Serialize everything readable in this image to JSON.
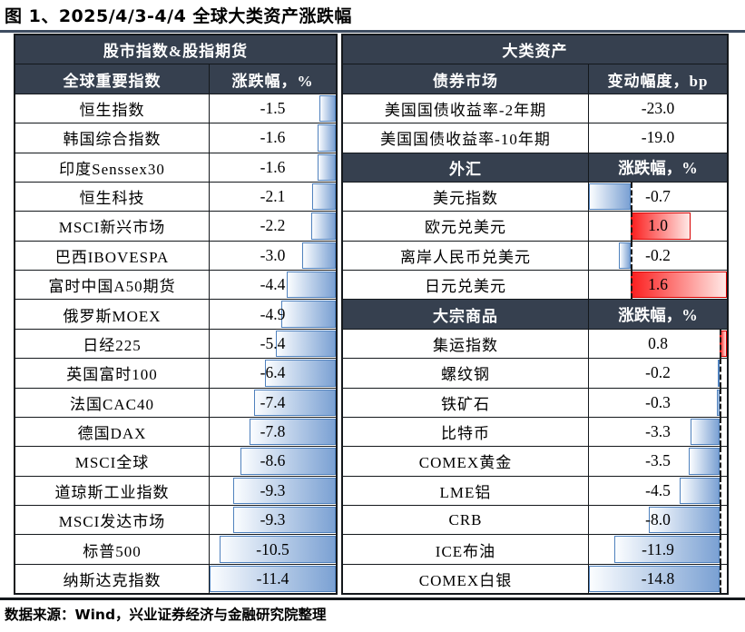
{
  "title": "图 1、2025/4/3-4/4 全球大类资产涨跌幅",
  "footer": "数据来源：Wind，兴业证券经济与金融研究院整理",
  "colors": {
    "header_bg": "#36404f",
    "bar_blue": "#7ba1d3",
    "bar_blue_border": "#4f81bd",
    "bar_red": "#fb1f1f",
    "bar_red_border": "#d80000",
    "title_rule": "#3e4d61",
    "grid": "#14181c"
  },
  "left_table": {
    "group_header": "股市指数&股指期货",
    "col_headers": [
      "全球重要指数",
      "涨跌幅，%"
    ],
    "scale": {
      "min": -11.4,
      "max": 0,
      "show_axis": false
    },
    "rows": [
      {
        "label": "恒生指数",
        "value": -1.5,
        "display": "-1.5"
      },
      {
        "label": "韩国综合指数",
        "value": -1.6,
        "display": "-1.6"
      },
      {
        "label": "印度Senssex30",
        "value": -1.6,
        "display": "-1.6"
      },
      {
        "label": "恒生科技",
        "value": -2.1,
        "display": "-2.1"
      },
      {
        "label": "MSCI新兴市场",
        "value": -2.2,
        "display": "-2.2"
      },
      {
        "label": "巴西IBOVESPA",
        "value": -3.0,
        "display": "-3.0"
      },
      {
        "label": "富时中国A50期货",
        "value": -4.4,
        "display": "-4.4"
      },
      {
        "label": "俄罗斯MOEX",
        "value": -4.9,
        "display": "-4.9"
      },
      {
        "label": "日经225",
        "value": -5.4,
        "display": "-5.4"
      },
      {
        "label": "英国富时100",
        "value": -6.4,
        "display": "-6.4"
      },
      {
        "label": "法国CAC40",
        "value": -7.4,
        "display": "-7.4"
      },
      {
        "label": "德国DAX",
        "value": -7.8,
        "display": "-7.8"
      },
      {
        "label": "MSCI全球",
        "value": -8.6,
        "display": "-8.6"
      },
      {
        "label": "道琼斯工业指数",
        "value": -9.3,
        "display": "-9.3"
      },
      {
        "label": "MSCI发达市场",
        "value": -9.3,
        "display": "-9.3"
      },
      {
        "label": "标普500",
        "value": -10.5,
        "display": "-10.5"
      },
      {
        "label": "纳斯达克指数",
        "value": -11.4,
        "display": "-11.4"
      }
    ]
  },
  "right_table": {
    "group_header": "大类资产",
    "sections": [
      {
        "header": "债券市场",
        "value_header": "变动幅度，bp",
        "bars": false,
        "scale": null,
        "rows": [
          {
            "label": "美国国债收益率-2年期",
            "value": -23.0,
            "display": "-23.0"
          },
          {
            "label": "美国国债收益率-10年期",
            "value": -19.0,
            "display": "-19.0"
          }
        ]
      },
      {
        "header": "外汇",
        "value_header": "涨跌幅，%",
        "bars": true,
        "scale": {
          "min": -0.7,
          "max": 1.6,
          "show_axis": true
        },
        "rows": [
          {
            "label": "美元指数",
            "value": -0.7,
            "display": "-0.7"
          },
          {
            "label": "欧元兑美元",
            "value": 1.0,
            "display": "1.0"
          },
          {
            "label": "离岸人民币兑美元",
            "value": -0.2,
            "display": "-0.2"
          },
          {
            "label": "日元兑美元",
            "value": 1.6,
            "display": "1.6"
          }
        ]
      },
      {
        "header": "大宗商品",
        "value_header": "涨跌幅，%",
        "bars": true,
        "scale": {
          "min": -14.8,
          "max": 0.8,
          "show_axis": true
        },
        "rows": [
          {
            "label": "集运指数",
            "value": 0.8,
            "display": "0.8"
          },
          {
            "label": "螺纹钢",
            "value": -0.2,
            "display": "-0.2"
          },
          {
            "label": "铁矿石",
            "value": -0.3,
            "display": "-0.3"
          },
          {
            "label": "比特币",
            "value": -3.3,
            "display": "-3.3"
          },
          {
            "label": "COMEX黄金",
            "value": -3.5,
            "display": "-3.5"
          },
          {
            "label": "LME铝",
            "value": -4.5,
            "display": "-4.5"
          },
          {
            "label": "CRB",
            "value": -8.0,
            "display": "-8.0"
          },
          {
            "label": "ICE布油",
            "value": -11.9,
            "display": "-11.9"
          },
          {
            "label": "COMEX白银",
            "value": -14.8,
            "display": "-14.8"
          }
        ]
      }
    ]
  },
  "chart_data": [
    {
      "type": "bar",
      "title": "股市指数&股指期货 — 全球重要指数",
      "ylabel": "涨跌幅，%",
      "categories": [
        "恒生指数",
        "韩国综合指数",
        "印度Senssex30",
        "恒生科技",
        "MSCI新兴市场",
        "巴西IBOVESPA",
        "富时中国A50期货",
        "俄罗斯MOEX",
        "日经225",
        "英国富时100",
        "法国CAC40",
        "德国DAX",
        "MSCI全球",
        "道琼斯工业指数",
        "MSCI发达市场",
        "标普500",
        "纳斯达克指数"
      ],
      "values": [
        -1.5,
        -1.6,
        -1.6,
        -2.1,
        -2.2,
        -3.0,
        -4.4,
        -4.9,
        -5.4,
        -6.4,
        -7.4,
        -7.8,
        -8.6,
        -9.3,
        -9.3,
        -10.5,
        -11.4
      ],
      "xlim": [
        -11.4,
        0
      ]
    },
    {
      "type": "bar",
      "title": "大类资产 — 债券市场",
      "ylabel": "变动幅度，bp",
      "categories": [
        "美国国债收益率-2年期",
        "美国国债收益率-10年期"
      ],
      "values": [
        -23.0,
        -19.0
      ]
    },
    {
      "type": "bar",
      "title": "大类资产 — 外汇",
      "ylabel": "涨跌幅，%",
      "categories": [
        "美元指数",
        "欧元兑美元",
        "离岸人民币兑美元",
        "日元兑美元"
      ],
      "values": [
        -0.7,
        1.0,
        -0.2,
        1.6
      ],
      "xlim": [
        -0.7,
        1.6
      ]
    },
    {
      "type": "bar",
      "title": "大类资产 — 大宗商品",
      "ylabel": "涨跌幅，%",
      "categories": [
        "集运指数",
        "螺纹钢",
        "铁矿石",
        "比特币",
        "COMEX黄金",
        "LME铝",
        "CRB",
        "ICE布油",
        "COMEX白银"
      ],
      "values": [
        0.8,
        -0.2,
        -0.3,
        -3.3,
        -3.5,
        -4.5,
        -8.0,
        -11.9,
        -14.8
      ],
      "xlim": [
        -14.8,
        0.8
      ]
    }
  ]
}
